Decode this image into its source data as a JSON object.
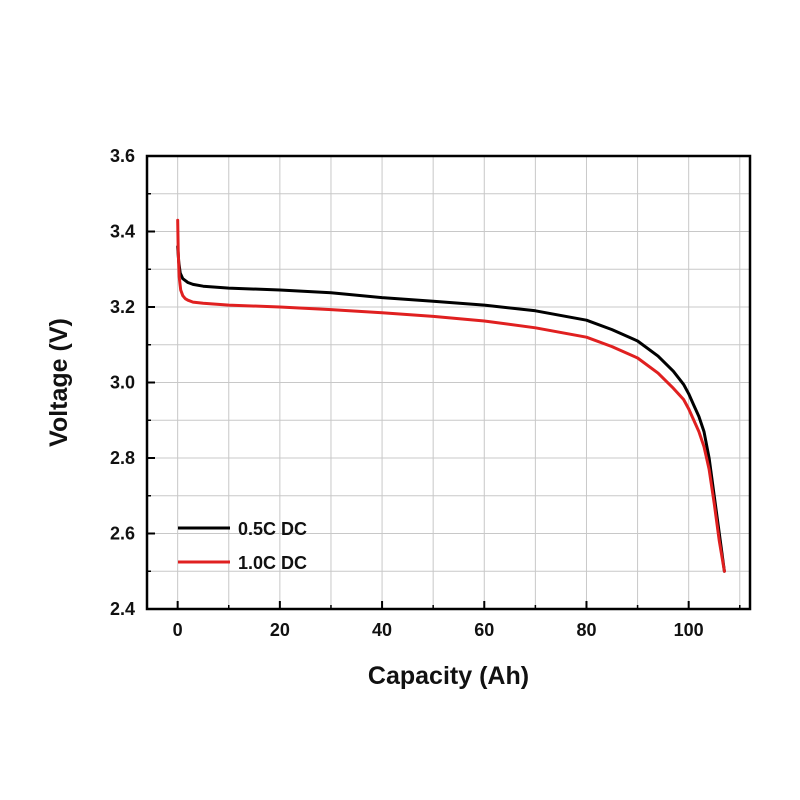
{
  "chart_data": {
    "type": "line",
    "xlabel": "Capacity (Ah)",
    "ylabel": "Voltage (V)",
    "xlim": [
      -6,
      112
    ],
    "ylim": [
      2.4,
      3.6
    ],
    "x_ticks": [
      0,
      20,
      40,
      60,
      80,
      100
    ],
    "x_tick_labels": [
      "0",
      "20",
      "40",
      "60",
      "80",
      "100"
    ],
    "y_ticks": [
      2.4,
      2.6,
      2.8,
      3.0,
      3.2,
      3.4,
      3.6
    ],
    "y_tick_labels": [
      "2.4",
      "2.6",
      "2.8",
      "3.0",
      "3.2",
      "3.4",
      "3.6"
    ],
    "grid": true,
    "legend_position": "bottom-left",
    "series": [
      {
        "name": "0.5C DC",
        "color": "#000000",
        "x": [
          0,
          0.2,
          0.5,
          1,
          1.5,
          2,
          3,
          5,
          10,
          20,
          30,
          40,
          50,
          60,
          70,
          80,
          85,
          90,
          94,
          97,
          99,
          100,
          101,
          102,
          103,
          104,
          105,
          106,
          107
        ],
        "y": [
          3.36,
          3.32,
          3.29,
          3.275,
          3.27,
          3.265,
          3.26,
          3.255,
          3.25,
          3.245,
          3.238,
          3.225,
          3.215,
          3.205,
          3.19,
          3.165,
          3.14,
          3.11,
          3.07,
          3.03,
          2.995,
          2.97,
          2.94,
          2.91,
          2.87,
          2.8,
          2.7,
          2.6,
          2.5
        ]
      },
      {
        "name": "1.0C DC",
        "color": "#e02020",
        "x": [
          0,
          0.1,
          0.3,
          0.6,
          1,
          1.5,
          2,
          3,
          5,
          10,
          20,
          30,
          40,
          50,
          60,
          70,
          80,
          85,
          90,
          94,
          97,
          99,
          100,
          101,
          102,
          103,
          104,
          105,
          106,
          107
        ],
        "y": [
          3.43,
          3.35,
          3.28,
          3.245,
          3.23,
          3.222,
          3.218,
          3.213,
          3.21,
          3.205,
          3.2,
          3.193,
          3.185,
          3.175,
          3.163,
          3.145,
          3.12,
          3.095,
          3.065,
          3.025,
          2.985,
          2.955,
          2.93,
          2.9,
          2.87,
          2.83,
          2.77,
          2.68,
          2.58,
          2.5
        ]
      }
    ]
  }
}
